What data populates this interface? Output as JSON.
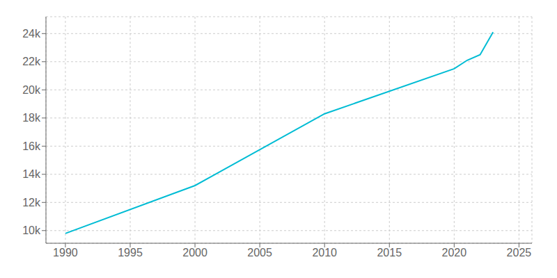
{
  "chart_data": {
    "type": "line",
    "x": [
      1990,
      2000,
      2010,
      2020,
      2021,
      2022,
      2023
    ],
    "values": [
      9800,
      13200,
      18300,
      21500,
      22100,
      22500,
      24100
    ],
    "color": "#00bcd4",
    "xlim": [
      1988.5,
      2026
    ],
    "ylim": [
      9100,
      25200
    ],
    "xticks": [
      1990,
      1995,
      2000,
      2005,
      2010,
      2015,
      2020,
      2025
    ],
    "yticks": [
      {
        "value": 10000,
        "label": "10k"
      },
      {
        "value": 12000,
        "label": "12k"
      },
      {
        "value": 14000,
        "label": "14k"
      },
      {
        "value": 16000,
        "label": "16k"
      },
      {
        "value": 18000,
        "label": "18k"
      },
      {
        "value": 20000,
        "label": "20k"
      },
      {
        "value": 22000,
        "label": "22k"
      },
      {
        "value": 24000,
        "label": "24k"
      }
    ],
    "grid": true
  }
}
